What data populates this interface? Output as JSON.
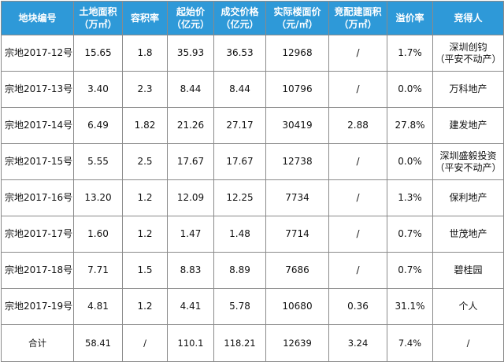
{
  "headers": [
    [
      "地块编号"
    ],
    [
      "土地面积",
      "（万㎡）"
    ],
    [
      "容积率"
    ],
    [
      "起始价",
      "（亿元）"
    ],
    [
      "成交价格",
      "（亿元）"
    ],
    [
      "实际楼面价",
      "（元/㎡）"
    ],
    [
      "竞配建面积",
      "（万㎡）"
    ],
    [
      "溢价率"
    ],
    [
      "竞得人"
    ]
  ],
  "rows": [
    {
      "code": "宗地2017-12号",
      "area": "15.65",
      "far": "1.8",
      "start": "35.93",
      "deal": "36.53",
      "floor": "12968",
      "build": "/",
      "premium": "1.7%",
      "buyer": [
        "深圳创钧",
        "（平安不动产）"
      ]
    },
    {
      "code": "宗地2017-13号",
      "area": "3.40",
      "far": "2.3",
      "start": "8.44",
      "deal": "8.44",
      "floor": "10796",
      "build": "/",
      "premium": "0.0%",
      "buyer": [
        "万科地产"
      ]
    },
    {
      "code": "宗地2017-14号",
      "area": "6.49",
      "far": "1.82",
      "start": "21.26",
      "deal": "27.17",
      "floor": "30419",
      "build": "2.88",
      "premium": "27.8%",
      "buyer": [
        "建发地产"
      ]
    },
    {
      "code": "宗地2017-15号",
      "area": "5.55",
      "far": "2.5",
      "start": "17.67",
      "deal": "17.67",
      "floor": "12738",
      "build": "/",
      "premium": "0.0%",
      "buyer": [
        "深圳盛毅投资",
        "（平安不动产）"
      ]
    },
    {
      "code": "宗地2017-16号",
      "area": "13.20",
      "far": "1.2",
      "start": "12.09",
      "deal": "12.25",
      "floor": "7734",
      "build": "/",
      "premium": "1.3%",
      "buyer": [
        "保利地产"
      ]
    },
    {
      "code": "宗地2017-17号",
      "area": "1.60",
      "far": "1.2",
      "start": "1.47",
      "deal": "1.48",
      "floor": "7714",
      "build": "/",
      "premium": "0.7%",
      "buyer": [
        "世茂地产"
      ]
    },
    {
      "code": "宗地2017-18号",
      "area": "7.71",
      "far": "1.5",
      "start": "8.83",
      "deal": "8.89",
      "floor": "7686",
      "build": "/",
      "premium": "0.7%",
      "buyer": [
        "碧桂园"
      ]
    },
    {
      "code": "宗地2017-19号",
      "area": "4.81",
      "far": "1.2",
      "start": "4.41",
      "deal": "5.78",
      "floor": "10680",
      "build": "0.36",
      "premium": "31.1%",
      "buyer": [
        "个人"
      ]
    }
  ],
  "total": {
    "label": "合计",
    "area": "58.41",
    "far": "/",
    "start": "110.1",
    "deal": "118.21",
    "floor": "12639",
    "build": "3.24",
    "premium": "7.4%",
    "buyer": "/"
  },
  "colors": {
    "header_bg": "#2e99d8",
    "header_text": "#ffffff",
    "border": "#8a8a8a"
  }
}
